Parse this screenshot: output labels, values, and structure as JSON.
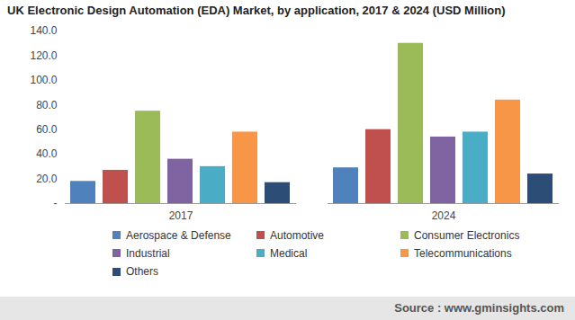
{
  "chart_data": {
    "type": "bar",
    "title": "UK Electronic Design Automation (EDA) Market, by application, 2017 & 2024 (USD Million)",
    "source": "Source : www.gminsights.com",
    "categories": [
      "2017",
      "2024"
    ],
    "series": [
      {
        "name": "Aerospace & Defense",
        "color": "#4f81bd",
        "values": [
          18,
          29
        ]
      },
      {
        "name": "Automotive",
        "color": "#c0504d",
        "values": [
          27,
          60
        ]
      },
      {
        "name": "Consumer Electronics",
        "color": "#9bbb59",
        "values": [
          75,
          130
        ]
      },
      {
        "name": "Industrial",
        "color": "#8064a2",
        "values": [
          36,
          54
        ]
      },
      {
        "name": "Medical",
        "color": "#4bacc6",
        "values": [
          30,
          58
        ]
      },
      {
        "name": "Telecommunications",
        "color": "#f79646",
        "values": [
          58,
          84
        ]
      },
      {
        "name": "Others",
        "color": "#2c4d75",
        "values": [
          17,
          24
        ]
      }
    ],
    "ylim": [
      0,
      140
    ],
    "yticks": [
      {
        "value": 0,
        "label": "-"
      },
      {
        "value": 20,
        "label": "20.0"
      },
      {
        "value": 40,
        "label": "40.0"
      },
      {
        "value": 60,
        "label": "60.0"
      },
      {
        "value": 80,
        "label": "80.0"
      },
      {
        "value": 100,
        "label": "100.0"
      },
      {
        "value": 120,
        "label": "120.0"
      },
      {
        "value": 140,
        "label": "140.0"
      }
    ],
    "grid": false,
    "legend": "bottom"
  }
}
